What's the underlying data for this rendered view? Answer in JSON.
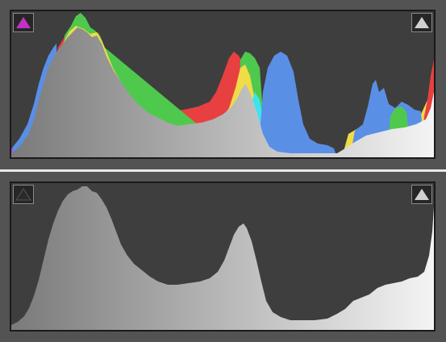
{
  "colors": {
    "app_background": "#535353",
    "panel_background": "#3e3e3e",
    "divider": "#e8e8e8",
    "luminance_gradient": [
      "#7a7a7a",
      "#f4f4f4"
    ],
    "red": "#e84040",
    "green": "#4ec94e",
    "blue": "#5a8fe6",
    "yellow": "#f0dc46",
    "cyan": "#3fe3f0",
    "magenta": "#c032c6"
  },
  "histogram_color": {
    "shadow_clipping_button": {
      "icon": "triangle-up-icon",
      "color": "#c032c6",
      "active": true
    },
    "highlight_clipping_button": {
      "icon": "triangle-up-icon",
      "color": "#d0d0d0",
      "active": false
    }
  },
  "histogram_luminance": {
    "shadow_clipping_button": {
      "icon": "triangle-up-icon",
      "color": "#2a2a2a",
      "active": false
    },
    "highlight_clipping_button": {
      "icon": "triangle-up-icon",
      "color": "#d0d0d0",
      "active": false
    }
  }
}
